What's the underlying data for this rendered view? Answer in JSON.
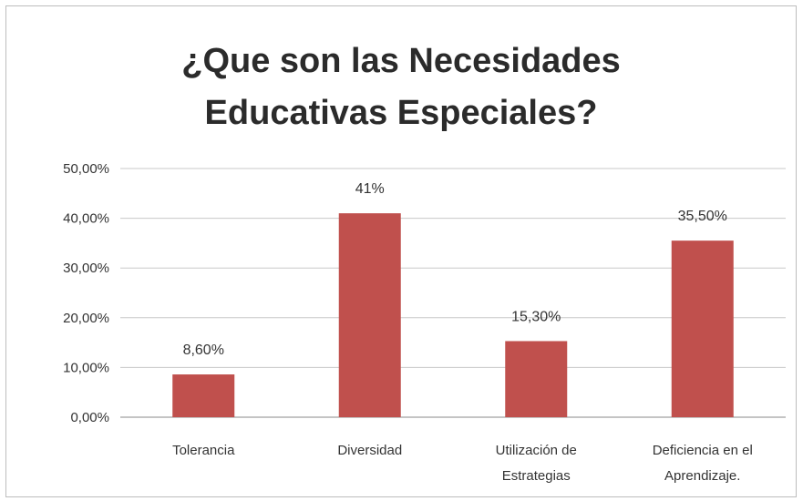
{
  "chart_data": {
    "type": "bar",
    "title_lines": [
      "¿Que son las Necesidades",
      "Educativas Especiales?"
    ],
    "categories": [
      [
        "Tolerancia"
      ],
      [
        "Diversidad"
      ],
      [
        "Utilización de",
        "Estrategias"
      ],
      [
        "Deficiencia en el",
        "Aprendizaje."
      ]
    ],
    "values": [
      8.6,
      41,
      15.3,
      35.5
    ],
    "data_labels": [
      "8,60%",
      "41%",
      "15,30%",
      "35,50%"
    ],
    "y_ticks": [
      0,
      10,
      20,
      30,
      40,
      50
    ],
    "y_tick_labels": [
      "0,00%",
      "10,00%",
      "20,00%",
      "30,00%",
      "40,00%",
      "50,00%"
    ],
    "ylim": [
      0,
      50
    ],
    "grid": true,
    "legend": "none",
    "bar_color": "#c0504d"
  }
}
